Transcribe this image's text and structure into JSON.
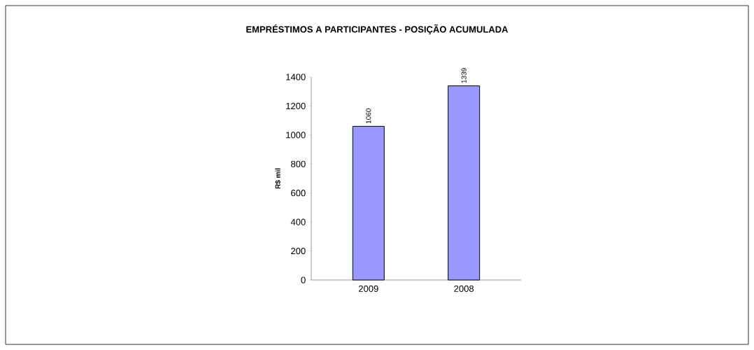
{
  "chart_data": {
    "type": "bar",
    "title": "EMPRÉSTIMOS A PARTICIPANTES - POSIÇÃO ACUMULADA",
    "ylabel": "R$ mil",
    "categories": [
      "2009",
      "2008"
    ],
    "values": [
      1060,
      1339
    ],
    "color": "#9999ff",
    "ylim": [
      0,
      1400
    ],
    "yticks": [
      0,
      200,
      400,
      600,
      800,
      1000,
      1200,
      1400
    ],
    "data_labels": true,
    "grid": false
  }
}
